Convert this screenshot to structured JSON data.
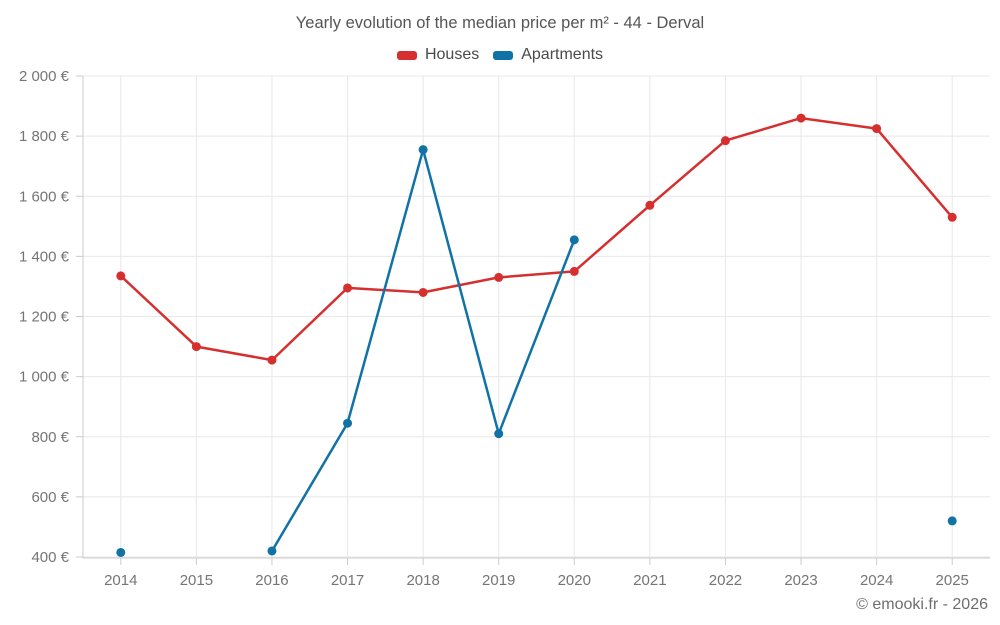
{
  "title": "Yearly evolution of the median price per m² - 44 - Derval",
  "legend": {
    "items": [
      {
        "label": "Houses",
        "color": "#d5302f"
      },
      {
        "label": "Apartments",
        "color": "#1172a5"
      }
    ]
  },
  "footer": {
    "credit": "© emooki.fr - 2026"
  },
  "colors": {
    "houses": "#d5302f",
    "apartments": "#1172a5",
    "gridline": "#e8e8e8",
    "axis_line": "#cbcbcb",
    "tick_mark": "#cbcbcb",
    "axis_label": "#757575",
    "background": "#ffffff"
  },
  "chart_data": {
    "type": "line",
    "title": "Yearly evolution of the median price per m² - 44 - Derval",
    "categories": [
      "2014",
      "2015",
      "2016",
      "2017",
      "2018",
      "2019",
      "2020",
      "2021",
      "2022",
      "2023",
      "2024",
      "2025"
    ],
    "series": [
      {
        "name": "Houses",
        "color": "#d5302f",
        "values": [
          1335,
          1100,
          1055,
          1295,
          1280,
          1330,
          1350,
          1570,
          1785,
          1860,
          1825,
          1530
        ]
      },
      {
        "name": "Apartments",
        "color": "#1172a5",
        "values": [
          415,
          null,
          420,
          845,
          1755,
          810,
          1455,
          null,
          null,
          null,
          null,
          520
        ]
      }
    ],
    "xlabel": "",
    "ylabel": "",
    "ylim": [
      400,
      2000
    ],
    "yticks": [
      {
        "value": 400,
        "label": "400 €"
      },
      {
        "value": 600,
        "label": "600 €"
      },
      {
        "value": 800,
        "label": "800 €"
      },
      {
        "value": 1000,
        "label": "1 000 €"
      },
      {
        "value": 1200,
        "label": "1 200 €"
      },
      {
        "value": 1400,
        "label": "1 400 €"
      },
      {
        "value": 1600,
        "label": "1 600 €"
      },
      {
        "value": 1800,
        "label": "1 800 €"
      },
      {
        "value": 2000,
        "label": "2 000 €"
      }
    ],
    "grid": true,
    "legend_position": "top",
    "currency_suffix": "€"
  }
}
